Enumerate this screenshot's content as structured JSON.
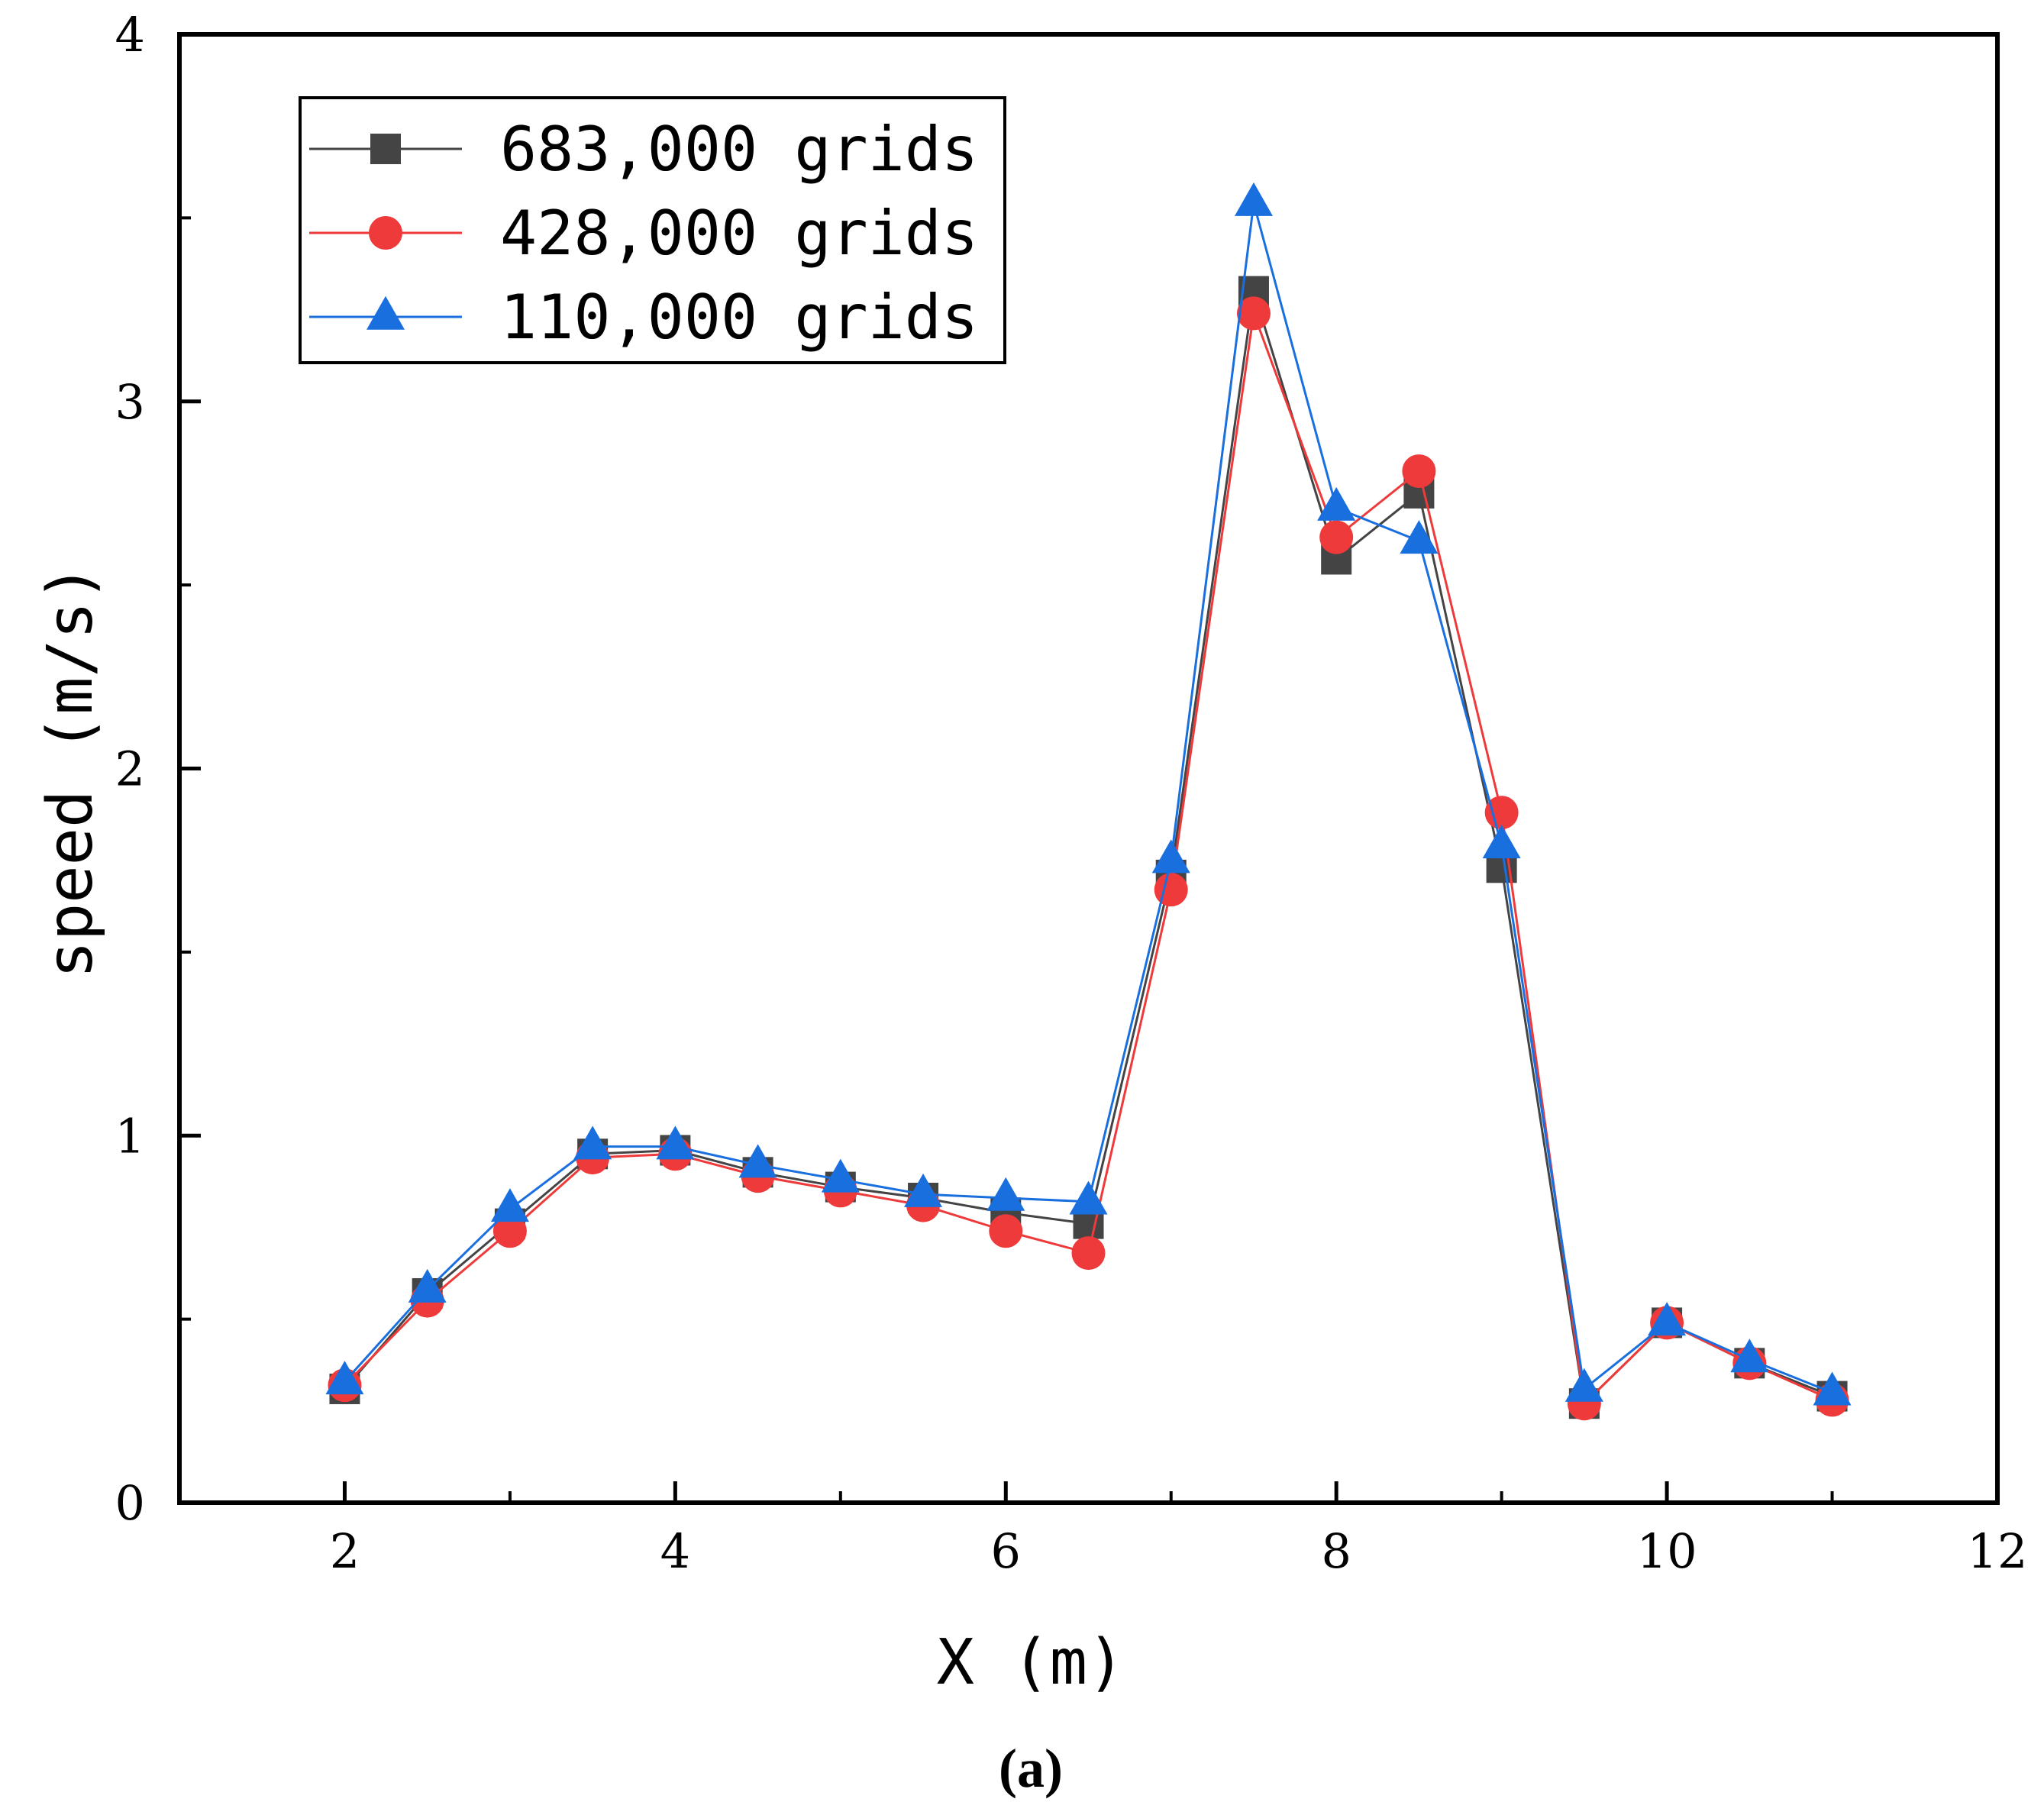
{
  "chart_data": {
    "type": "line",
    "title": "",
    "xlabel": "X (m)",
    "ylabel": "speed (m/s)",
    "xlim": [
      1,
      12
    ],
    "ylim": [
      0,
      4
    ],
    "x_ticks": [
      2,
      4,
      6,
      8,
      10,
      12
    ],
    "y_ticks": [
      0,
      1,
      2,
      3,
      4
    ],
    "x_tick_labels": [
      "2",
      "4",
      "6",
      "8",
      "10",
      "12"
    ],
    "y_tick_labels": [
      "0",
      "1",
      "2",
      "3",
      "4"
    ],
    "grid": false,
    "legend_position": "top-left",
    "caption": "(a)",
    "x": [
      2,
      2.5,
      3,
      3.5,
      4,
      4.5,
      5,
      5.5,
      6,
      6.5,
      7,
      7.5,
      8,
      8.5,
      9,
      9.5,
      10,
      10.5,
      11
    ],
    "series": [
      {
        "name": "683,000 grids",
        "color": "#444444",
        "marker": "square",
        "values": [
          0.31,
          0.57,
          0.76,
          0.95,
          0.96,
          0.9,
          0.86,
          0.83,
          0.79,
          0.76,
          1.71,
          3.3,
          2.57,
          2.75,
          1.73,
          0.27,
          0.49,
          0.38,
          0.29
        ]
      },
      {
        "name": "428,000 grids",
        "color": "#ee3a3a",
        "marker": "circle",
        "values": [
          0.32,
          0.55,
          0.74,
          0.94,
          0.95,
          0.89,
          0.85,
          0.81,
          0.74,
          0.68,
          1.67,
          3.24,
          2.63,
          2.81,
          1.88,
          0.27,
          0.49,
          0.38,
          0.28
        ]
      },
      {
        "name": "110,000 grids",
        "color": "#1a6fdf",
        "marker": "triangle",
        "values": [
          0.33,
          0.58,
          0.8,
          0.97,
          0.97,
          0.92,
          0.88,
          0.84,
          0.83,
          0.82,
          1.75,
          3.54,
          2.71,
          2.62,
          1.79,
          0.31,
          0.49,
          0.39,
          0.3
        ]
      }
    ]
  }
}
